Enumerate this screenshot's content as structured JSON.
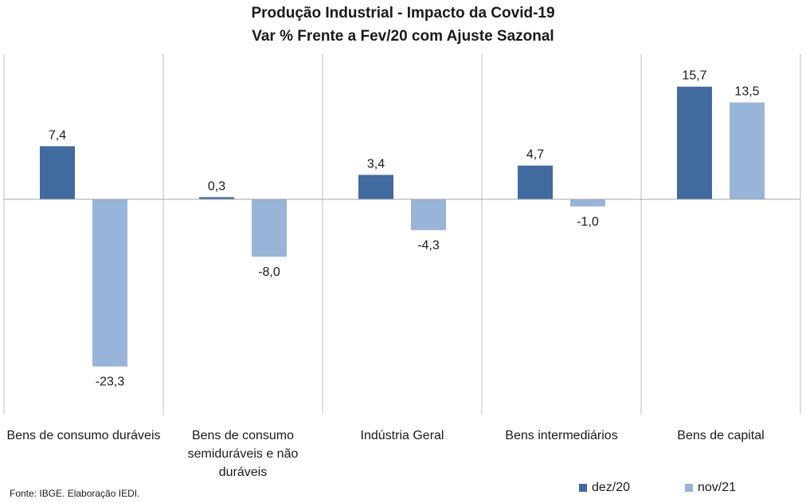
{
  "chart_data": {
    "type": "bar",
    "title": "Produção Industrial - Impacto da Covid-19",
    "subtitle": "Var % Frente a Fev/20 com Ajuste Sazonal",
    "categories": [
      "Bens de consumo duráveis",
      "Bens de consumo semiduráveis e não duráveis",
      "Indústria Geral",
      "Bens intermediários",
      "Bens de capital"
    ],
    "series": [
      {
        "name": "dez/20",
        "color": "#416b9e",
        "values": [
          7.4,
          0.3,
          3.4,
          4.7,
          15.7
        ],
        "labels": [
          "7,4",
          "0,3",
          "3,4",
          "4,7",
          "15,7"
        ]
      },
      {
        "name": "nov/21",
        "color": "#98b4d9",
        "values": [
          -23.3,
          -8.0,
          -4.3,
          -1.0,
          13.5
        ],
        "labels": [
          "-23,3",
          "-8,0",
          "-4,3",
          "-1,0",
          "13,5"
        ]
      }
    ],
    "ylim": [
      -30,
      20
    ],
    "grid": false,
    "legend_position": "bottom-right",
    "source": "Fonte: IBGE. Elaboração IEDI."
  }
}
